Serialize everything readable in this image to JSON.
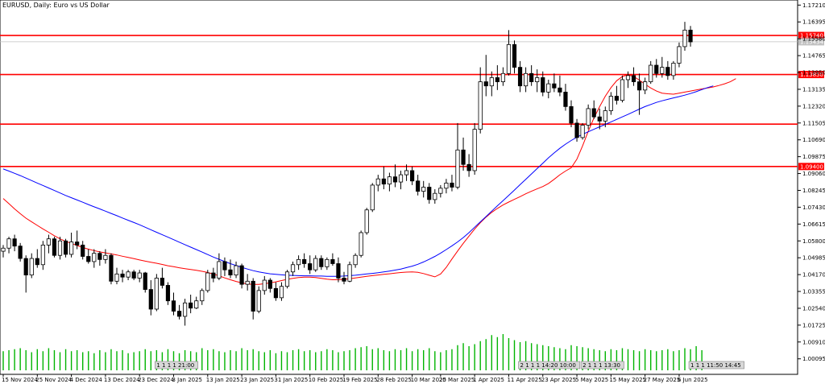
{
  "title": "EURUSD, Daily:  Euro vs US Dollar",
  "chart_data": {
    "type": "candlestick",
    "title": "EURUSD, Daily:  Euro vs US Dollar",
    "y_range": [
      0.995,
      1.173
    ],
    "y_ticks": [
      "1.17210",
      "1.16395",
      "1.15580",
      "1.14765",
      "1.13950",
      "1.13135",
      "1.12320",
      "1.11505",
      "1.10690",
      "1.09875",
      "1.09060",
      "1.08245",
      "1.07430",
      "1.06615",
      "1.05800",
      "1.04985",
      "1.04170",
      "1.03355",
      "1.02540",
      "1.01725",
      "1.00910",
      "1.00095"
    ],
    "x_ticks": [
      "15 Nov 2024",
      "25 Nov 2024",
      "4 Dec 2024",
      "13 Dec 2024",
      "23 Dec 2024",
      "3 Jan 2025",
      "13 Jan 2025",
      "23 Jan 2025",
      "31 Jan 2025",
      "10 Feb 2025",
      "19 Feb 2025",
      "28 Feb 2025",
      "10 Mar 2025",
      "20 Mar 2025",
      "1 Apr 2025",
      "11 Apr 2025",
      "23 Apr 2025",
      "5 May 2025",
      "15 May 2025",
      "27 May 2025",
      "6 Jun 2025"
    ],
    "horizontal_levels": [
      {
        "price": 1.1574,
        "label": "1.15740",
        "color": "#ff0000"
      },
      {
        "price": 1.1385,
        "label": "1.13850",
        "color": "#ff0000"
      },
      {
        "price": 1.1145,
        "label": "",
        "color": "#ff0000"
      },
      {
        "price": 1.094,
        "label": "1.09400",
        "color": "#ff0000"
      }
    ],
    "current_price_label": "1.15434",
    "moving_averages": [
      {
        "color": "#ff0000",
        "points": [
          1.0785,
          1.076,
          1.0735,
          1.0712,
          1.069,
          1.0672,
          1.0655,
          1.0638,
          1.0622,
          1.0605,
          1.059,
          1.0578,
          1.0568,
          1.0558,
          1.0548,
          1.054,
          1.0533,
          1.0527,
          1.0522,
          1.0517,
          1.0512,
          1.0506,
          1.05,
          1.0494,
          1.0488,
          1.0482,
          1.0477,
          1.0472,
          1.0466,
          1.046,
          1.0455,
          1.045,
          1.0446,
          1.0442,
          1.0438,
          1.0433,
          1.0427,
          1.042,
          1.0411,
          1.0401,
          1.0392,
          1.0384,
          1.0377,
          1.0372,
          1.037,
          1.037,
          1.0373,
          1.0377,
          1.0382,
          1.0388,
          1.0394,
          1.0399,
          1.0403,
          1.0405,
          1.0405,
          1.0403,
          1.0399,
          1.0395,
          1.0392,
          1.0392,
          1.0394,
          1.0397,
          1.0401,
          1.0405,
          1.0409,
          1.0412,
          1.0415,
          1.0418,
          1.0421,
          1.0424,
          1.0427,
          1.0429,
          1.043,
          1.0428,
          1.0422,
          1.0414,
          1.0406,
          1.042,
          1.0452,
          1.0492,
          1.0531,
          1.0568,
          1.0603,
          1.0637,
          1.0668,
          1.0695,
          1.0718,
          1.0737,
          1.0754,
          1.0768,
          1.0781,
          1.0794,
          1.0808,
          1.082,
          1.0832,
          1.0843,
          1.0858,
          1.0878,
          1.09,
          1.0918,
          1.0934,
          1.0975,
          1.104,
          1.111,
          1.1175,
          1.123,
          1.128,
          1.1322,
          1.1355,
          1.1375,
          1.1385,
          1.1375,
          1.1358,
          1.1338,
          1.132,
          1.1305,
          1.1295,
          1.1292,
          1.129,
          1.1295,
          1.13,
          1.1305,
          1.131,
          1.1315,
          1.132,
          1.1325,
          1.1332,
          1.134,
          1.135,
          1.1365
        ]
      },
      {
        "color": "#0000ff",
        "points": [
          1.0928,
          1.0918,
          1.0907,
          1.0896,
          1.0884,
          1.0872,
          1.086,
          1.0848,
          1.0836,
          1.0824,
          1.0812,
          1.08,
          1.0789,
          1.0778,
          1.0767,
          1.0756,
          1.0745,
          1.0735,
          1.0724,
          1.0713,
          1.0702,
          1.0691,
          1.068,
          1.0669,
          1.0658,
          1.0646,
          1.0634,
          1.0622,
          1.061,
          1.0598,
          1.0586,
          1.0574,
          1.0562,
          1.055,
          1.0538,
          1.0526,
          1.0514,
          1.0502,
          1.0491,
          1.048,
          1.047,
          1.0461,
          1.0452,
          1.0444,
          1.0436,
          1.043,
          1.0425,
          1.0421,
          1.0418,
          1.0416,
          1.0414,
          1.0413,
          1.0412,
          1.0411,
          1.0411,
          1.041,
          1.041,
          1.0409,
          1.0409,
          1.0409,
          1.041,
          1.0412,
          1.0414,
          1.0417,
          1.042,
          1.0423,
          1.0426,
          1.043,
          1.0434,
          1.0439,
          1.0444,
          1.0451,
          1.0458,
          1.0467,
          1.0478,
          1.0491,
          1.0505,
          1.0521,
          1.0538,
          1.0556,
          1.0575,
          1.0596,
          1.062,
          1.0646,
          1.0672,
          1.0698,
          1.0724,
          1.075,
          1.0775,
          1.08,
          1.0826,
          1.0852,
          1.0878,
          1.0904,
          1.093,
          1.0956,
          1.0982,
          1.1006,
          1.1028,
          1.1048,
          1.1066,
          1.1082,
          1.1096,
          1.1108,
          1.112,
          1.1132,
          1.1144,
          1.1156,
          1.1168,
          1.118,
          1.1192,
          1.1205,
          1.1218,
          1.123,
          1.124,
          1.125,
          1.1258,
          1.1265,
          1.1272,
          1.1278,
          1.1285,
          1.1293,
          1.1302,
          1.1312,
          1.1322,
          1.133
        ]
      }
    ],
    "candles": [
      [
        1.053,
        1.056,
        1.05,
        1.0545
      ],
      [
        1.0545,
        1.06,
        1.052,
        1.059
      ],
      [
        1.059,
        1.061,
        1.053,
        1.0555
      ],
      [
        1.0555,
        1.057,
        1.048,
        1.0495
      ],
      [
        1.0495,
        1.051,
        1.033,
        1.0415
      ],
      [
        1.0415,
        1.052,
        1.04,
        1.0495
      ],
      [
        1.0495,
        1.054,
        1.045,
        1.0465
      ],
      [
        1.0465,
        1.058,
        1.044,
        1.056
      ],
      [
        1.056,
        1.061,
        1.052,
        1.059
      ],
      [
        1.059,
        1.06,
        1.05,
        1.051
      ],
      [
        1.051,
        1.06,
        1.049,
        1.058
      ],
      [
        1.058,
        1.059,
        1.05,
        1.0515
      ],
      [
        1.0515,
        1.062,
        1.05,
        1.0575
      ],
      [
        1.0575,
        1.063,
        1.054,
        1.056
      ],
      [
        1.056,
        1.058,
        1.049,
        1.0505
      ],
      [
        1.0505,
        1.054,
        1.047,
        1.048
      ],
      [
        1.048,
        1.054,
        1.045,
        1.052
      ],
      [
        1.052,
        1.053,
        1.046,
        1.049
      ],
      [
        1.049,
        1.054,
        1.047,
        1.051
      ],
      [
        1.051,
        1.052,
        1.037,
        1.0385
      ],
      [
        1.0385,
        1.045,
        1.037,
        1.042
      ],
      [
        1.042,
        1.044,
        1.038,
        1.0405
      ],
      [
        1.0405,
        1.044,
        1.039,
        1.043
      ],
      [
        1.043,
        1.044,
        1.039,
        1.04
      ],
      [
        1.04,
        1.044,
        1.038,
        1.0425
      ],
      [
        1.0425,
        1.043,
        1.033,
        1.0345
      ],
      [
        1.0345,
        1.039,
        1.022,
        1.025
      ],
      [
        1.025,
        1.042,
        1.024,
        1.04
      ],
      [
        1.04,
        1.045,
        1.035,
        1.0365
      ],
      [
        1.0365,
        1.038,
        1.027,
        1.029
      ],
      [
        1.029,
        1.033,
        1.022,
        1.024
      ],
      [
        1.024,
        1.027,
        1.02,
        1.0215
      ],
      [
        1.0215,
        1.03,
        1.017,
        1.028
      ],
      [
        1.028,
        1.032,
        1.023,
        1.0255
      ],
      [
        1.0255,
        1.031,
        1.025,
        1.029
      ],
      [
        1.029,
        1.035,
        1.027,
        1.034
      ],
      [
        1.034,
        1.044,
        1.033,
        1.0425
      ],
      [
        1.0425,
        1.045,
        1.038,
        1.04
      ],
      [
        1.04,
        1.052,
        1.039,
        1.048
      ],
      [
        1.048,
        1.05,
        1.041,
        1.044
      ],
      [
        1.044,
        1.049,
        1.04,
        1.0415
      ],
      [
        1.0415,
        1.048,
        1.04,
        1.046
      ],
      [
        1.046,
        1.047,
        1.035,
        1.037
      ],
      [
        1.037,
        1.042,
        1.034,
        1.0385
      ],
      [
        1.0385,
        1.04,
        1.02,
        1.024
      ],
      [
        1.024,
        1.036,
        1.023,
        1.034
      ],
      [
        1.034,
        1.041,
        1.032,
        1.039
      ],
      [
        1.039,
        1.04,
        1.033,
        1.035
      ],
      [
        1.035,
        1.038,
        1.029,
        1.0305
      ],
      [
        1.0305,
        1.038,
        1.029,
        1.036
      ],
      [
        1.036,
        1.044,
        1.035,
        1.043
      ],
      [
        1.043,
        1.048,
        1.041,
        1.0465
      ],
      [
        1.0465,
        1.051,
        1.044,
        1.049
      ],
      [
        1.049,
        1.052,
        1.045,
        1.047
      ],
      [
        1.047,
        1.051,
        1.042,
        1.044
      ],
      [
        1.044,
        1.051,
        1.043,
        1.0495
      ],
      [
        1.0495,
        1.051,
        1.044,
        1.0455
      ],
      [
        1.0455,
        1.05,
        1.044,
        1.049
      ],
      [
        1.049,
        1.052,
        1.046,
        1.047
      ],
      [
        1.047,
        1.05,
        1.038,
        1.04
      ],
      [
        1.04,
        1.043,
        1.037,
        1.0385
      ],
      [
        1.0385,
        1.048,
        1.038,
        1.0465
      ],
      [
        1.0465,
        1.052,
        1.045,
        1.051
      ],
      [
        1.051,
        1.063,
        1.05,
        1.062
      ],
      [
        1.062,
        1.074,
        1.061,
        1.073
      ],
      [
        1.073,
        1.086,
        1.072,
        1.085
      ],
      [
        1.085,
        1.09,
        1.082,
        1.088
      ],
      [
        1.088,
        1.094,
        1.083,
        1.0855
      ],
      [
        1.0855,
        1.091,
        1.082,
        1.089
      ],
      [
        1.089,
        1.095,
        1.084,
        1.0865
      ],
      [
        1.0865,
        1.092,
        1.083,
        1.09
      ],
      [
        1.09,
        1.095,
        1.087,
        1.092
      ],
      [
        1.092,
        1.094,
        1.085,
        1.087
      ],
      [
        1.087,
        1.09,
        1.08,
        1.082
      ],
      [
        1.082,
        1.087,
        1.079,
        1.084
      ],
      [
        1.084,
        1.086,
        1.076,
        1.078
      ],
      [
        1.078,
        1.083,
        1.076,
        1.081
      ],
      [
        1.081,
        1.085,
        1.079,
        1.0835
      ],
      [
        1.0835,
        1.088,
        1.081,
        1.086
      ],
      [
        1.086,
        1.09,
        1.082,
        1.084
      ],
      [
        1.084,
        1.115,
        1.083,
        1.102
      ],
      [
        1.102,
        1.108,
        1.092,
        1.095
      ],
      [
        1.095,
        1.1,
        1.089,
        1.092
      ],
      [
        1.092,
        1.115,
        1.09,
        1.112
      ],
      [
        1.112,
        1.142,
        1.11,
        1.135
      ],
      [
        1.135,
        1.148,
        1.128,
        1.133
      ],
      [
        1.133,
        1.14,
        1.128,
        1.137
      ],
      [
        1.137,
        1.143,
        1.131,
        1.135
      ],
      [
        1.135,
        1.142,
        1.133,
        1.139
      ],
      [
        1.139,
        1.16,
        1.138,
        1.153
      ],
      [
        1.153,
        1.155,
        1.139,
        1.142
      ],
      [
        1.142,
        1.145,
        1.13,
        1.133
      ],
      [
        1.133,
        1.142,
        1.13,
        1.139
      ],
      [
        1.139,
        1.143,
        1.133,
        1.135
      ],
      [
        1.135,
        1.141,
        1.13,
        1.137
      ],
      [
        1.137,
        1.14,
        1.128,
        1.13
      ],
      [
        1.13,
        1.136,
        1.127,
        1.134
      ],
      [
        1.134,
        1.139,
        1.13,
        1.132
      ],
      [
        1.132,
        1.138,
        1.128,
        1.13
      ],
      [
        1.13,
        1.134,
        1.121,
        1.123
      ],
      [
        1.123,
        1.126,
        1.113,
        1.115
      ],
      [
        1.115,
        1.117,
        1.106,
        1.108
      ],
      [
        1.108,
        1.115,
        1.107,
        1.114
      ],
      [
        1.114,
        1.124,
        1.112,
        1.122
      ],
      [
        1.122,
        1.126,
        1.117,
        1.118
      ],
      [
        1.118,
        1.122,
        1.112,
        1.116
      ],
      [
        1.116,
        1.123,
        1.113,
        1.121
      ],
      [
        1.121,
        1.13,
        1.119,
        1.128
      ],
      [
        1.128,
        1.133,
        1.124,
        1.126
      ],
      [
        1.126,
        1.138,
        1.125,
        1.136
      ],
      [
        1.136,
        1.14,
        1.132,
        1.138
      ],
      [
        1.138,
        1.142,
        1.133,
        1.135
      ],
      [
        1.135,
        1.139,
        1.119,
        1.131
      ],
      [
        1.131,
        1.137,
        1.129,
        1.135
      ],
      [
        1.135,
        1.145,
        1.134,
        1.143
      ],
      [
        1.143,
        1.146,
        1.137,
        1.139
      ],
      [
        1.139,
        1.147,
        1.137,
        1.142
      ],
      [
        1.142,
        1.145,
        1.136,
        1.138
      ],
      [
        1.138,
        1.145,
        1.136,
        1.144
      ],
      [
        1.144,
        1.154,
        1.142,
        1.152
      ],
      [
        1.152,
        1.164,
        1.15,
        1.16
      ],
      [
        1.16,
        1.162,
        1.152,
        1.1543
      ]
    ],
    "volumes": [
      38,
      40,
      42,
      44,
      40,
      36,
      42,
      38,
      44,
      40,
      36,
      42,
      38,
      40,
      36,
      38,
      34,
      40,
      36,
      42,
      38,
      40,
      34,
      36,
      38,
      42,
      38,
      40,
      36,
      42,
      38,
      34,
      40,
      38,
      36,
      44,
      40,
      42,
      38,
      36,
      40,
      38,
      44,
      40,
      42,
      38,
      36,
      40,
      34,
      38,
      36,
      40,
      42,
      38,
      40,
      36,
      38,
      42,
      40,
      36,
      38,
      40,
      44,
      46,
      48,
      42,
      44,
      40,
      38,
      42,
      40,
      44,
      38,
      42,
      40,
      44,
      38,
      36,
      40,
      42,
      50,
      54,
      48,
      52,
      58,
      62,
      70,
      66,
      72,
      64,
      60,
      56,
      58,
      54,
      52,
      50,
      48,
      46,
      44,
      42,
      50,
      48,
      46,
      44,
      42,
      40,
      38,
      42,
      40,
      44,
      42,
      40,
      38,
      42,
      40,
      38,
      40,
      42,
      38,
      40,
      44,
      42,
      48,
      40
    ],
    "volume_max": 80,
    "event_markers": [
      {
        "label": "1 1 1 1 21:00",
        "index": 27
      },
      {
        "label": "2 1 1 1 14:20 10:00",
        "index": 91
      },
      {
        "label": "2 1 1 1 13:30",
        "index": 102
      },
      {
        "label": "1 1 1 11:50 14:45",
        "index": 121
      }
    ]
  }
}
